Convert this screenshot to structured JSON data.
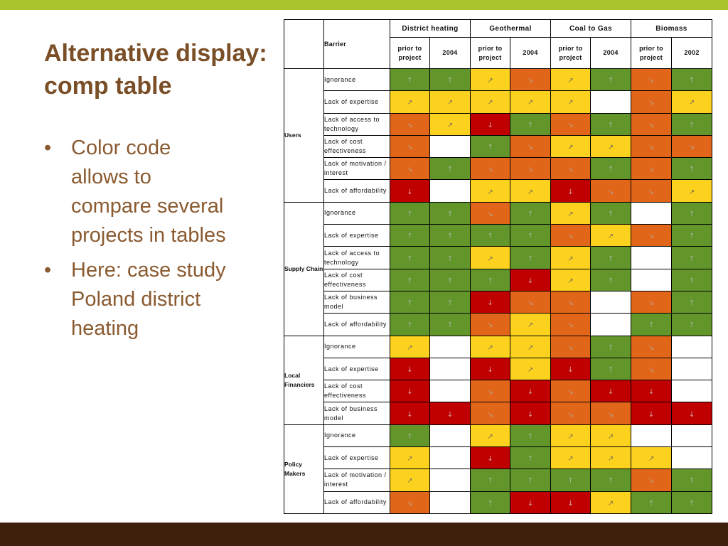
{
  "slide": {
    "title_lines": [
      "Alternative display:",
      "comp table"
    ],
    "bullets": [
      {
        "lines": [
          "Color code",
          "allows to",
          "compare several",
          "projects in tables"
        ]
      },
      {
        "lines": [
          "Here: case study",
          "Poland district",
          "heating"
        ]
      }
    ]
  },
  "colors": {
    "top_bar": "#a7c42c",
    "bottom_bar": "#3e210d",
    "title": "#7a4e27",
    "body_text": "#8a5a30"
  },
  "table": {
    "barrier_header": "Barrier",
    "groups": [
      {
        "name": "District heating",
        "periods": [
          "prior to project",
          "2004"
        ]
      },
      {
        "name": "Geothermal",
        "periods": [
          "prior to project",
          "2004"
        ]
      },
      {
        "name": "Coal to Gas",
        "periods": [
          "prior to project",
          "2004"
        ]
      },
      {
        "name": "Biomass",
        "periods": [
          "prior to project",
          "2002"
        ]
      }
    ],
    "status_legend": {
      "green": {
        "color": "#62962b",
        "icon": "arrow-up-icon"
      },
      "yellow": {
        "color": "#fdd21e",
        "icon": "arrow-up-right-icon"
      },
      "orange": {
        "color": "#e2661a",
        "icon": "arrow-down-right-icon"
      },
      "red": {
        "color": "#c00000",
        "icon": "arrow-down-icon"
      },
      "none": {
        "color": "#ffffff",
        "icon": ""
      }
    },
    "sections": [
      {
        "category": "Users",
        "rows": [
          {
            "barrier": "Ignorance",
            "cells": [
              "green",
              "green",
              "yellow",
              "orange",
              "yellow",
              "green",
              "orange",
              "green"
            ]
          },
          {
            "barrier": "Lack of expertise",
            "cells": [
              "yellow",
              "yellow",
              "yellow",
              "yellow",
              "yellow",
              "none",
              "orange",
              "yellow"
            ]
          },
          {
            "barrier": "Lack of access to technology",
            "cells": [
              "orange",
              "yellow",
              "red",
              "green",
              "orange",
              "green",
              "orange",
              "green"
            ]
          },
          {
            "barrier": "Lack of cost effectiveness",
            "cells": [
              "orange",
              "none",
              "green",
              "orange",
              "yellow",
              "yellow",
              "orange",
              "orange"
            ]
          },
          {
            "barrier": "Lack of motivation / interest",
            "cells": [
              "orange",
              "green",
              "orange",
              "orange",
              "orange",
              "green",
              "orange",
              "green"
            ]
          },
          {
            "barrier": "Lack of affordability",
            "cells": [
              "red",
              "none",
              "yellow",
              "yellow",
              "red",
              "orange",
              "orange",
              "yellow"
            ]
          }
        ]
      },
      {
        "category": "Supply Chain",
        "rows": [
          {
            "barrier": "Ignorance",
            "cells": [
              "green",
              "green",
              "orange",
              "green",
              "yellow",
              "green",
              "none",
              "green"
            ]
          },
          {
            "barrier": "Lack of expertise",
            "cells": [
              "green",
              "green",
              "green",
              "green",
              "orange",
              "yellow",
              "orange",
              "green"
            ]
          },
          {
            "barrier": "Lack of access to technology",
            "cells": [
              "green",
              "green",
              "yellow",
              "green",
              "yellow",
              "green",
              "none",
              "green"
            ]
          },
          {
            "barrier": "Lack of cost effectiveness",
            "cells": [
              "green",
              "green",
              "green",
              "red",
              "yellow",
              "green",
              "none",
              "green"
            ]
          },
          {
            "barrier": "Lack of business model",
            "cells": [
              "green",
              "green",
              "red",
              "orange",
              "orange",
              "none",
              "orange",
              "green"
            ]
          },
          {
            "barrier": "Lack of affordability",
            "cells": [
              "green",
              "green",
              "orange",
              "yellow",
              "orange",
              "none",
              "green",
              "green"
            ]
          }
        ]
      },
      {
        "category": "Local Financiers",
        "rows": [
          {
            "barrier": "Ignorance",
            "cells": [
              "yellow",
              "none",
              "yellow",
              "yellow",
              "orange",
              "green",
              "orange",
              "none"
            ]
          },
          {
            "barrier": "Lack of expertise",
            "cells": [
              "red",
              "none",
              "red",
              "yellow",
              "red",
              "green",
              "orange",
              "none"
            ]
          },
          {
            "barrier": "Lack of cost effectiveness",
            "cells": [
              "red",
              "none",
              "orange",
              "red",
              "orange",
              "red",
              "red",
              "none"
            ]
          },
          {
            "barrier": "Lack of business model",
            "cells": [
              "red",
              "red",
              "orange",
              "red",
              "orange",
              "orange",
              "red",
              "red"
            ]
          }
        ]
      },
      {
        "category": "Policy Makers",
        "rows": [
          {
            "barrier": "Ignorance",
            "cells": [
              "green",
              "none",
              "yellow",
              "green",
              "yellow",
              "yellow",
              "none",
              "none"
            ]
          },
          {
            "barrier": "Lack of expertise",
            "cells": [
              "yellow",
              "none",
              "red",
              "green",
              "yellow",
              "yellow",
              "yellow",
              "none"
            ]
          },
          {
            "barrier": "Lack of motivation / interest",
            "cells": [
              "yellow",
              "none",
              "green",
              "green",
              "green",
              "green",
              "orange",
              "green"
            ]
          },
          {
            "barrier": "Lack of affordability",
            "cells": [
              "orange",
              "none",
              "green",
              "red",
              "red",
              "yellow",
              "green",
              "green"
            ]
          }
        ]
      }
    ]
  }
}
